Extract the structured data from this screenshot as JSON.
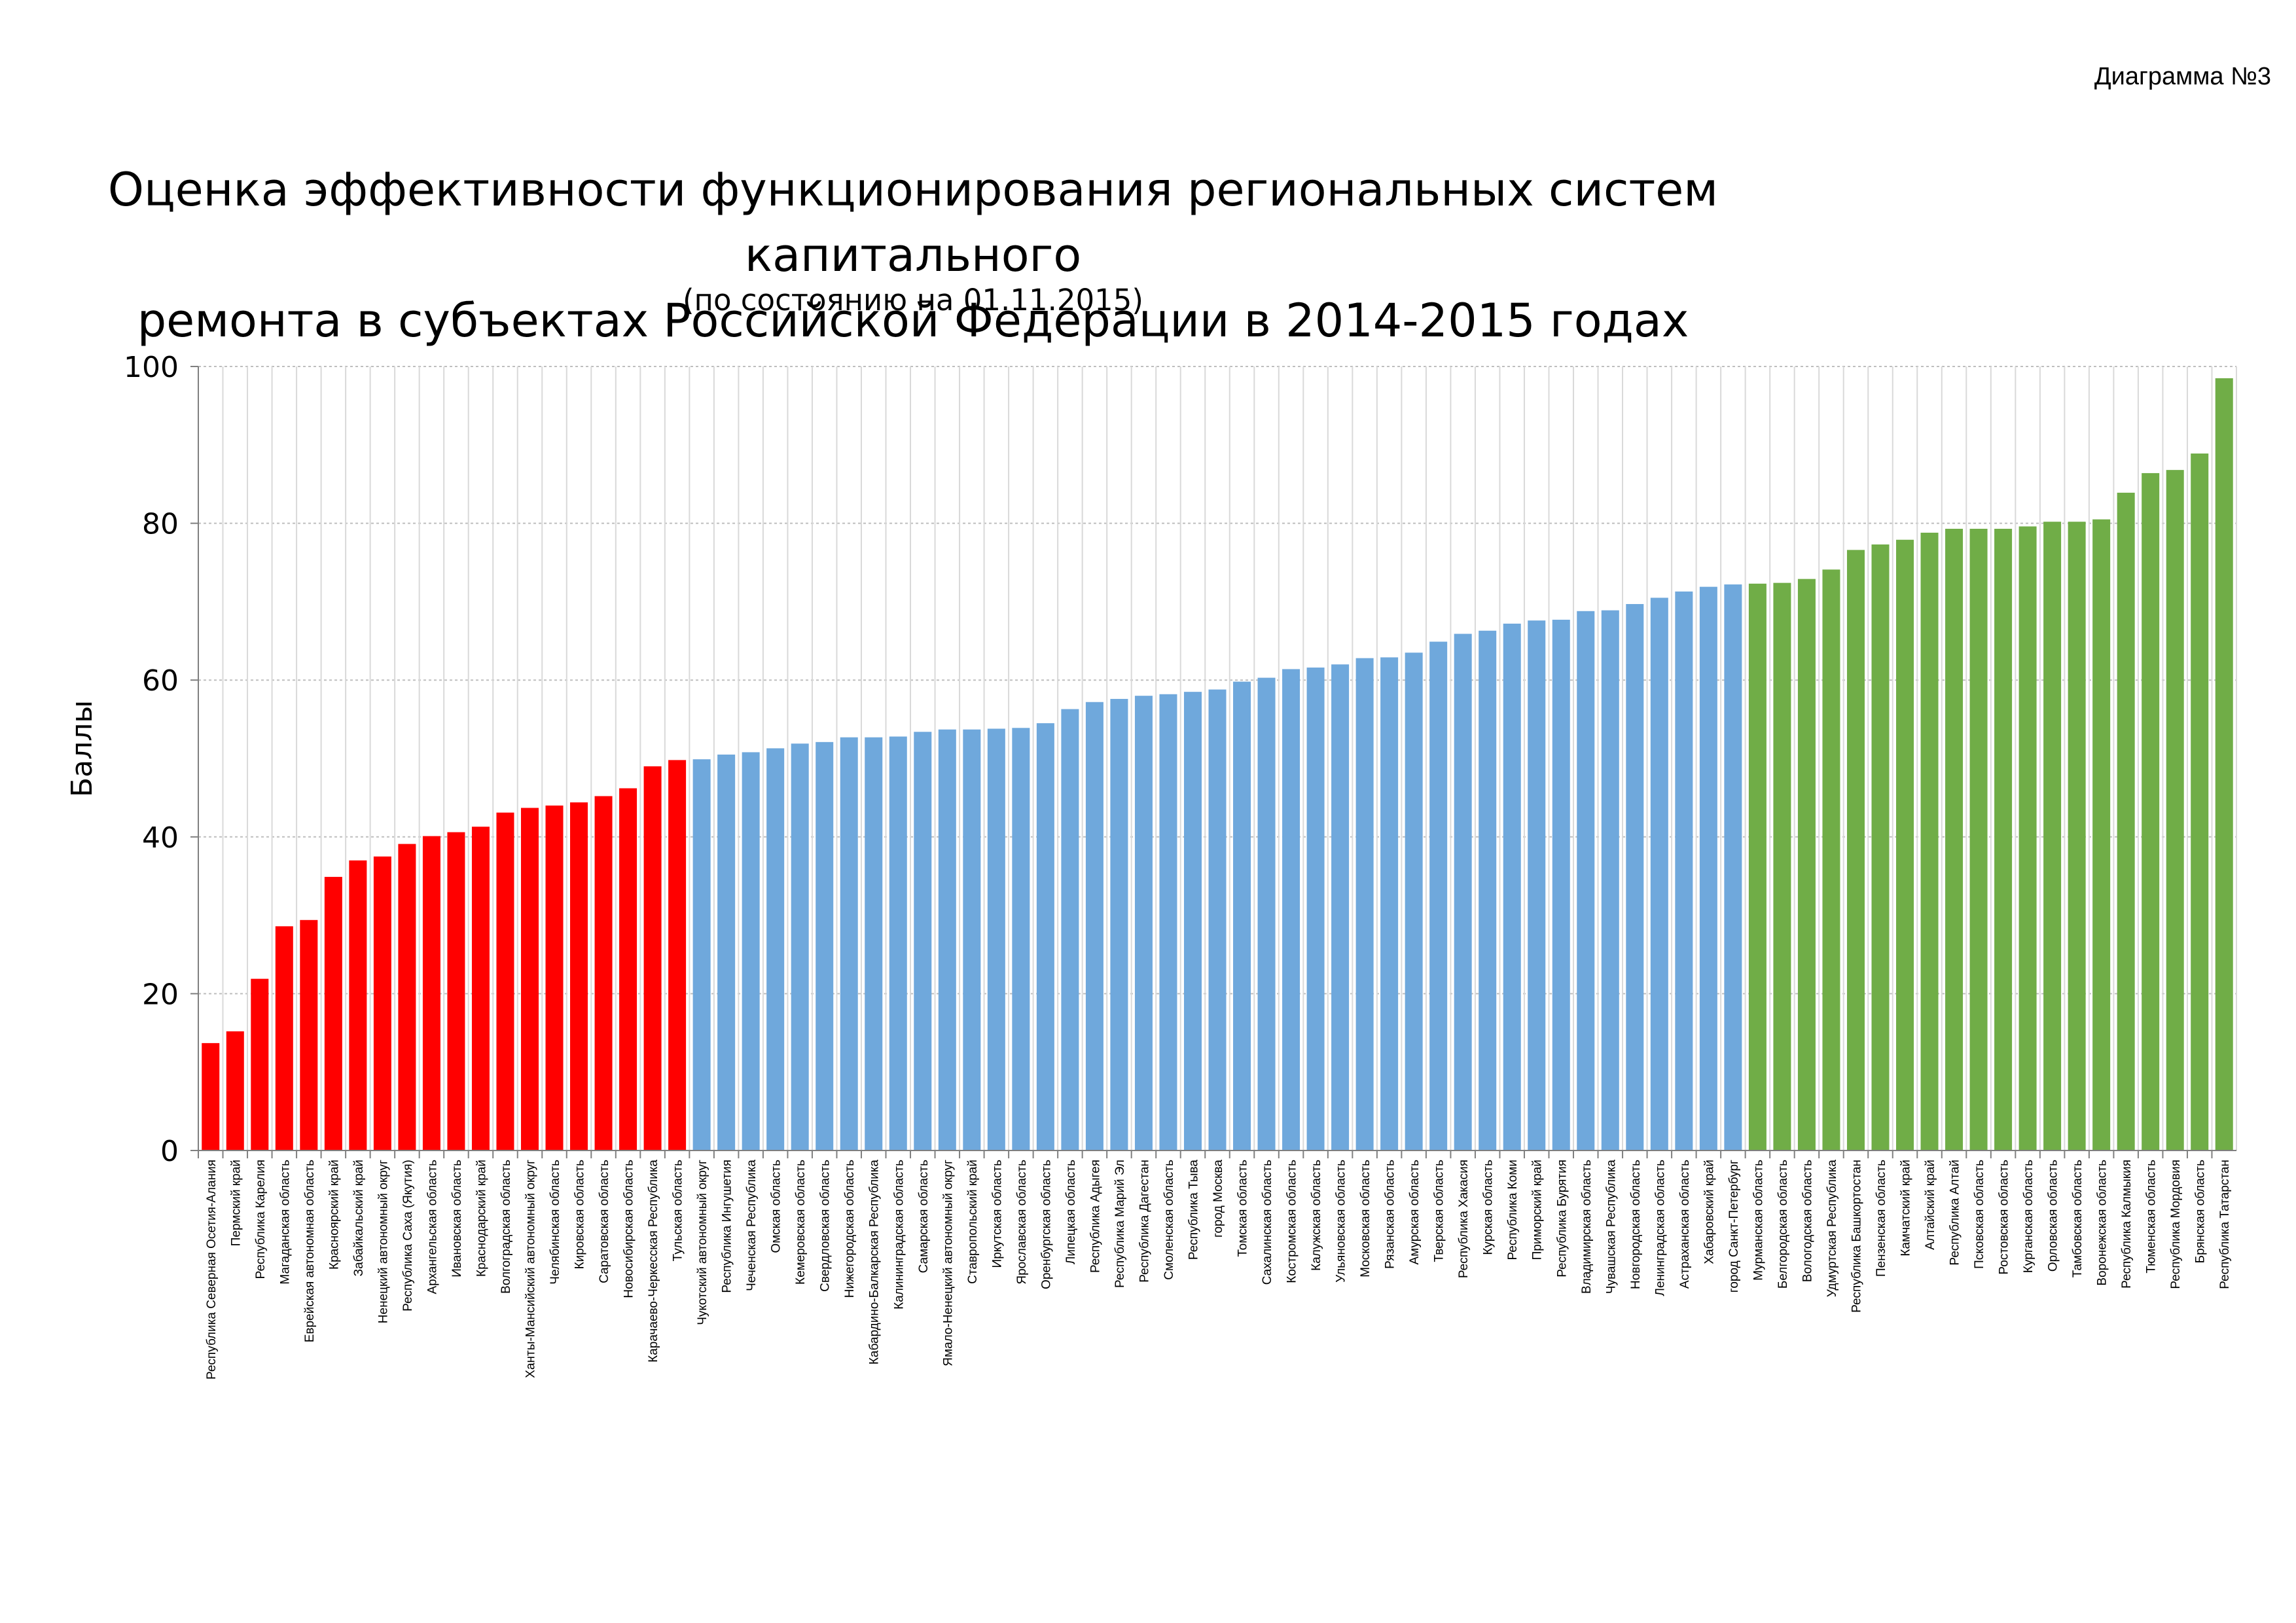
{
  "page_label": "Диаграмма №3",
  "chart_data": {
    "type": "bar",
    "title_line1": "Оценка эффективности функционирования региональных систем капитального",
    "title_line2": "ремонта в субъектах Российской Федерации в 2014-2015 годах",
    "subtitle": "(по состоянию на 01.11.2015)",
    "ylabel": "Баллы",
    "xlabel": "",
    "ylim": [
      0,
      100
    ],
    "yticks": [
      0,
      20,
      40,
      60,
      80,
      100
    ],
    "grid": true,
    "legend": "none",
    "colors": {
      "low": "#ff0000",
      "mid": "#6fa8dc",
      "high": "#70ad47"
    },
    "categories": [
      "Республика Северная Осетия-Алания",
      "Пермский край",
      "Республика Карелия",
      "Магаданская область",
      "Еврейская автономная область",
      "Красноярский край",
      "Забайкальский край",
      "Ненецкий автономный округ",
      "Республика Саха (Якутия)",
      "Архангельская область",
      "Ивановская область",
      "Краснодарский край",
      "Волгоградская область",
      "Ханты-Мансийский автономный округ",
      "Челябинская область",
      "Кировская область",
      "Саратовская область",
      "Новосибирская область",
      "Карачаево-Черкесская Республика",
      "Тульская область",
      "Чукотский автономный округ",
      "Республика Ингушетия",
      "Чеченская Республика",
      "Омская область",
      "Кемеровская область",
      "Свердловская область",
      "Нижегородская область",
      "Кабардино-Балкарская Республика",
      "Калининградская область",
      "Самарская область",
      "Ямало-Ненецкий автономный округ",
      "Ставропольский край",
      "Иркутская область",
      "Ярославская область",
      "Оренбургская область",
      "Липецкая область",
      "Республика Адыгея",
      "Республика Марий Эл",
      "Республика Дагестан",
      "Смоленская область",
      "Республика Тыва",
      "город Москва",
      "Томская область",
      "Сахалинская область",
      "Костромская область",
      "Калужская область",
      "Ульяновская область",
      "Московская область",
      "Рязанская область",
      "Амурская область",
      "Тверская область",
      "Республика Хакасия",
      "Курская область",
      "Республика Коми",
      "Приморский край",
      "Республика Бурятия",
      "Владимирская область",
      "Чувашская Республика",
      "Новгородская область",
      "Ленинградская область",
      "Астраханская область",
      "Хабаровский край",
      "город Санкт-Петербург",
      "Мурманская область",
      "Белгородская область",
      "Вологодская область",
      "Удмуртская Республика",
      "Республика Башкортостан",
      "Пензенская область",
      "Камчатский край",
      "Алтайский край",
      "Республика Алтай",
      "Псковская область",
      "Ростовская область",
      "Курганская область",
      "Орловская область",
      "Тамбовская область",
      "Воронежская область",
      "Республика Калмыкия",
      "Тюменская область",
      "Республика Мордовия",
      "Брянская область",
      "Республика Татарстан"
    ],
    "values": [
      13.7,
      15.2,
      21.9,
      28.6,
      29.4,
      34.9,
      37.0,
      37.5,
      39.1,
      40.1,
      40.6,
      41.3,
      43.1,
      43.7,
      44.0,
      44.4,
      45.2,
      46.2,
      49.0,
      49.8,
      49.9,
      50.5,
      50.8,
      51.3,
      51.9,
      52.1,
      52.7,
      52.7,
      52.8,
      53.4,
      53.7,
      53.7,
      53.8,
      53.9,
      54.5,
      56.3,
      57.2,
      57.6,
      58.0,
      58.2,
      58.5,
      58.8,
      59.8,
      60.3,
      61.4,
      61.6,
      62.0,
      62.8,
      62.9,
      63.5,
      64.9,
      65.9,
      66.3,
      67.2,
      67.6,
      67.7,
      68.8,
      68.9,
      69.7,
      70.5,
      71.3,
      71.9,
      72.2,
      72.3,
      72.4,
      72.9,
      74.1,
      76.6,
      77.3,
      77.9,
      78.8,
      79.3,
      79.3,
      79.3,
      79.6,
      80.2,
      80.2,
      80.5,
      83.9,
      86.4,
      86.8,
      88.9,
      98.5
    ],
    "groups": {
      "red_count": 20,
      "blue_count": 43,
      "green_count": 20
    }
  }
}
